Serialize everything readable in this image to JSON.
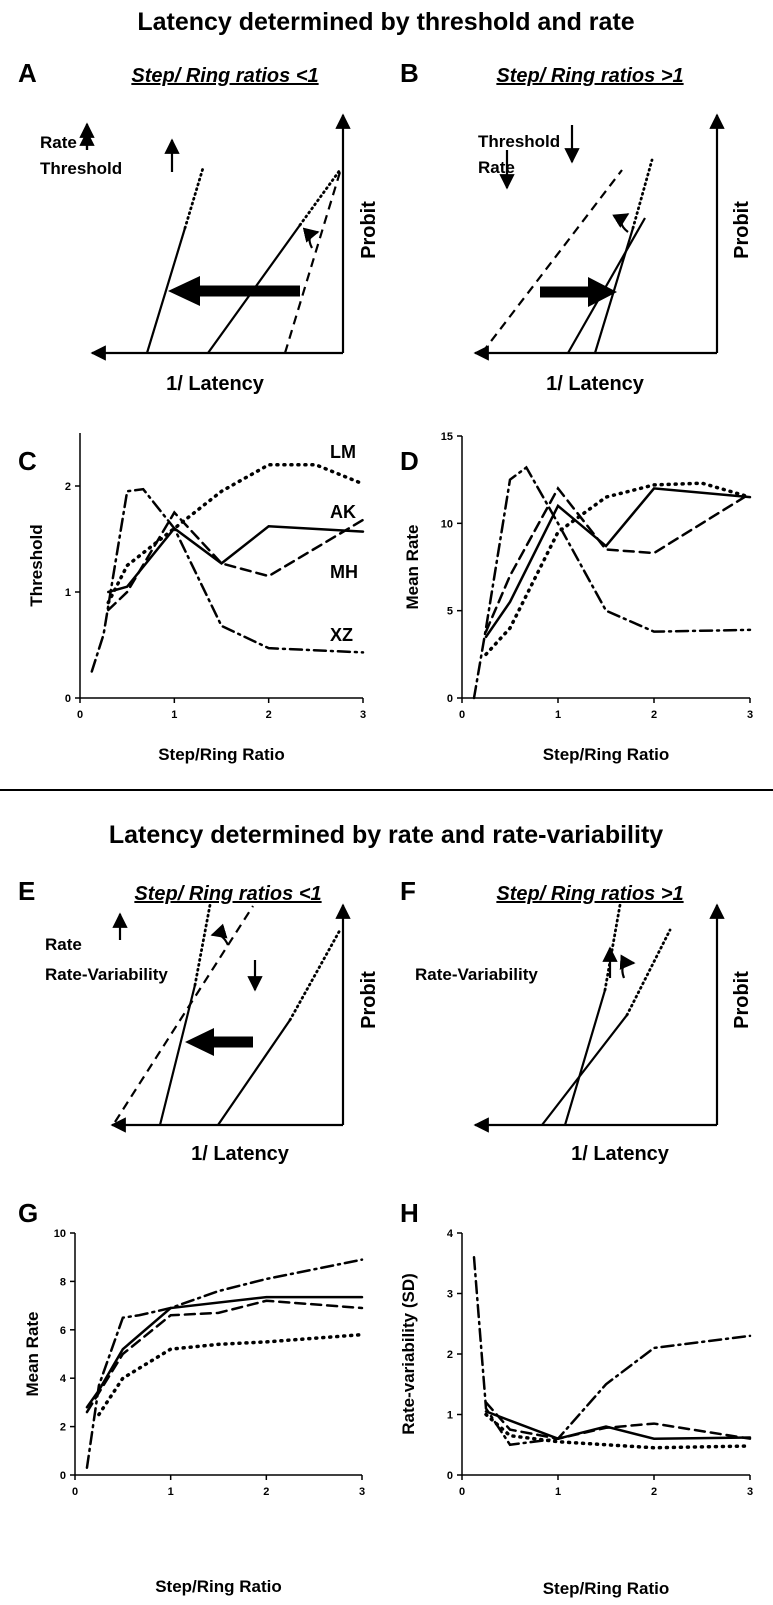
{
  "sections": [
    {
      "title": "Latency determined by threshold and rate"
    },
    {
      "title": "Latency determined by rate and rate-variability"
    }
  ],
  "diagrams": [
    {
      "label": "A",
      "subtitle": "Step/ Ring ratios <1",
      "annotations": [
        "Rate",
        "Threshold"
      ],
      "y_label": "Probit",
      "x_label": "1/ Latency"
    },
    {
      "label": "B",
      "subtitle": "Step/ Ring ratios >1",
      "annotations": [
        "Threshold",
        "Rate"
      ],
      "y_label": "Probit",
      "x_label": "1/ Latency"
    },
    {
      "label": "E",
      "subtitle": "Step/ Ring ratios <1",
      "annotations": [
        "Rate",
        "Rate-Variability"
      ],
      "y_label": "Probit",
      "x_label": "1/ Latency"
    },
    {
      "label": "F",
      "subtitle": "Step/ Ring ratios >1",
      "annotations": [
        "Rate-Variability"
      ],
      "y_label": "Probit",
      "x_label": "1/ Latency"
    }
  ],
  "chart_data": [
    {
      "type": "line",
      "label": "C",
      "ylabel": "Threshold",
      "xlabel": "Step/Ring Ratio",
      "xlim": [
        0,
        3
      ],
      "xticks": [
        0,
        1,
        2,
        3
      ],
      "ylim": [
        0,
        2.5
      ],
      "yticks": [
        0,
        1,
        2
      ],
      "series": [
        {
          "name": "LM",
          "style": "dotted",
          "color": "#000000",
          "x": [
            0.3,
            0.5,
            1,
            1.5,
            2,
            2.5,
            3
          ],
          "values": [
            0.9,
            1.25,
            1.6,
            1.95,
            2.2,
            2.2,
            2.02
          ]
        },
        {
          "name": "AK",
          "style": "solid",
          "color": "#000000",
          "x": [
            0.3,
            0.5,
            1,
            1.5,
            2,
            3
          ],
          "values": [
            1.0,
            1.05,
            1.6,
            1.27,
            1.62,
            1.57
          ]
        },
        {
          "name": "MH",
          "style": "dashed",
          "color": "#000000",
          "x": [
            0.3,
            0.5,
            1,
            1.5,
            2,
            3
          ],
          "values": [
            0.83,
            1.0,
            1.75,
            1.27,
            1.15,
            1.68
          ]
        },
        {
          "name": "XZ",
          "style": "dash-dot",
          "color": "#000000",
          "x": [
            0.125,
            0.25,
            0.5,
            0.67,
            1,
            1.5,
            2,
            3
          ],
          "values": [
            0.25,
            0.6,
            1.95,
            1.97,
            1.6,
            0.68,
            0.47,
            0.43
          ]
        }
      ]
    },
    {
      "type": "line",
      "label": "D",
      "ylabel": "Mean Rate",
      "xlabel": "Step/Ring Ratio",
      "xlim": [
        0,
        3
      ],
      "xticks": [
        0,
        1,
        2,
        3
      ],
      "ylim": [
        0,
        15
      ],
      "yticks": [
        0,
        5,
        10,
        15
      ],
      "series": [
        {
          "style": "dotted",
          "color": "#000000",
          "x": [
            0.25,
            0.5,
            1,
            1.5,
            2,
            2.5,
            3
          ],
          "values": [
            2.5,
            4,
            9.5,
            11.5,
            12.2,
            12.3,
            11.5
          ]
        },
        {
          "style": "solid",
          "color": "#000000",
          "x": [
            0.25,
            0.5,
            1,
            1.5,
            2,
            3
          ],
          "values": [
            3.5,
            5.5,
            11,
            8.7,
            12,
            11.5
          ]
        },
        {
          "style": "dashed",
          "color": "#000000",
          "x": [
            0.25,
            0.5,
            1,
            1.5,
            2,
            3
          ],
          "values": [
            3.8,
            7,
            12,
            8.5,
            8.3,
            11.7
          ]
        },
        {
          "style": "dash-dot",
          "color": "#000000",
          "x": [
            0.125,
            0.25,
            0.5,
            0.67,
            1,
            1.5,
            2,
            3
          ],
          "values": [
            0,
            4,
            12.5,
            13.2,
            10,
            5,
            3.8,
            3.9
          ]
        }
      ]
    },
    {
      "type": "line",
      "label": "G",
      "ylabel": "Mean Rate",
      "xlabel": "Step/Ring Ratio",
      "xlim": [
        0,
        3
      ],
      "xticks": [
        0,
        1,
        2,
        3
      ],
      "ylim": [
        0,
        10
      ],
      "yticks": [
        0,
        2,
        4,
        6,
        8,
        10
      ],
      "series": [
        {
          "style": "dotted",
          "color": "#000000",
          "x": [
            0.25,
            0.5,
            1,
            1.5,
            2,
            3
          ],
          "values": [
            2.5,
            4,
            5.2,
            5.4,
            5.5,
            5.8
          ]
        },
        {
          "style": "solid",
          "color": "#000000",
          "x": [
            0.125,
            0.25,
            0.5,
            1,
            2,
            3
          ],
          "values": [
            2.8,
            3.5,
            5.2,
            6.9,
            7.35,
            7.35
          ]
        },
        {
          "style": "dashed",
          "color": "#000000",
          "x": [
            0.125,
            0.25,
            0.5,
            1,
            1.5,
            2,
            3
          ],
          "values": [
            2.6,
            3.4,
            5,
            6.6,
            6.7,
            7.2,
            6.9
          ]
        },
        {
          "style": "dash-dot",
          "color": "#000000",
          "x": [
            0.125,
            0.25,
            0.5,
            0.67,
            1,
            1.5,
            2,
            3
          ],
          "values": [
            0.3,
            3.7,
            6.5,
            6.6,
            6.9,
            7.6,
            8.1,
            8.9
          ]
        }
      ]
    },
    {
      "type": "line",
      "label": "H",
      "ylabel": "Rate-variability (SD)",
      "xlabel": "Step/Ring Ratio",
      "xlim": [
        0,
        3
      ],
      "xticks": [
        0,
        1,
        2,
        3
      ],
      "ylim": [
        0,
        4
      ],
      "yticks": [
        0,
        1,
        2,
        3,
        4
      ],
      "series": [
        {
          "style": "dotted",
          "color": "#000000",
          "x": [
            0.25,
            0.5,
            1,
            1.5,
            2,
            3
          ],
          "values": [
            1.0,
            0.65,
            0.55,
            0.5,
            0.45,
            0.48
          ]
        },
        {
          "style": "solid",
          "color": "#000000",
          "x": [
            0.25,
            0.5,
            1,
            1.5,
            2,
            3
          ],
          "values": [
            1.05,
            0.9,
            0.6,
            0.8,
            0.6,
            0.62
          ]
        },
        {
          "style": "dashed",
          "color": "#000000",
          "x": [
            0.25,
            0.5,
            1,
            1.5,
            2,
            3
          ],
          "values": [
            1.2,
            0.75,
            0.6,
            0.78,
            0.85,
            0.6
          ]
        },
        {
          "style": "dash-dot",
          "color": "#000000",
          "x": [
            0.125,
            0.25,
            0.5,
            1,
            1.5,
            2,
            3
          ],
          "values": [
            3.6,
            1.1,
            0.5,
            0.6,
            1.5,
            2.1,
            2.3
          ]
        }
      ]
    }
  ]
}
